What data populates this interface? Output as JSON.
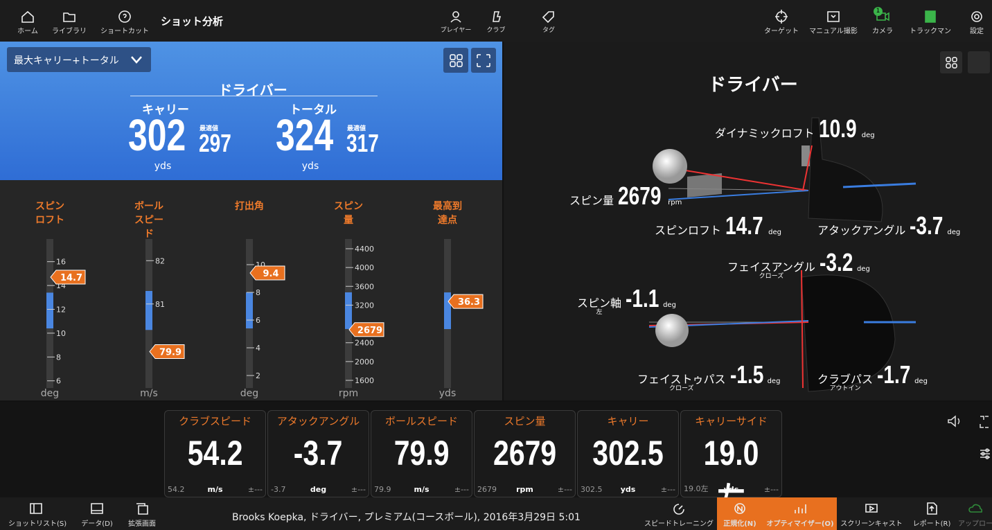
{
  "top_bar": {
    "left": [
      "ホーム",
      "ライブラリ",
      "ショートカット"
    ],
    "title": "ショット分析",
    "center": [
      "プレイヤー",
      "クラブ",
      "タグ"
    ],
    "right": [
      "ターゲット",
      "マニュアル撮影",
      "カメラ",
      "トラックマン",
      "設定"
    ],
    "camera_badge": "1"
  },
  "summary": {
    "dropdown": "最大キャリー+トータル",
    "club": "ドライバー",
    "optimal_label": "最適値",
    "unit": "yds",
    "metrics": [
      {
        "name": "キャリー",
        "value": 302,
        "optimal": 297
      },
      {
        "name": "トータル",
        "value": 324,
        "optimal": 317
      }
    ]
  },
  "gauges": [
    {
      "label": "スピンロフト",
      "unit": "deg",
      "value": 14.7,
      "ylim": [
        5.4,
        17.9
      ],
      "yticks": [
        6,
        8,
        10,
        12,
        14,
        16
      ],
      "optimal": [
        10.4,
        13.4
      ]
    },
    {
      "label": "ボールスピード",
      "unit": "m/s",
      "value": 79.9,
      "ylim": [
        79.06,
        82.5
      ],
      "yticks": [
        81,
        82
      ],
      "optimal": [
        80.4,
        81.3
      ]
    },
    {
      "label": "打出角",
      "unit": "deg",
      "value": 9.4,
      "ylim": [
        1.1,
        11.85
      ],
      "yticks": [
        2,
        4,
        6,
        8,
        10
      ],
      "optimal": [
        5.4,
        8
      ]
    },
    {
      "label": "スピン量",
      "unit": "rpm",
      "value": 2679,
      "ylim": [
        1438,
        4606
      ],
      "yticks": [
        1600,
        2000,
        2400,
        3200,
        3600,
        4000,
        4400
      ],
      "optimal": [
        2692,
        3472
      ]
    },
    {
      "label": "最高到達点",
      "unit": "yds",
      "value": 36.3,
      "ylim": [
        0,
        62.5
      ],
      "yticks": [],
      "optimal": [
        24.7,
        40.1
      ]
    }
  ],
  "diagram": {
    "title": "ドライバー",
    "metrics": [
      {
        "label": "ダイナミックロフト",
        "value": 10.9,
        "unit": "deg"
      },
      {
        "label": "スピン量",
        "value": 2679,
        "unit": "rpm"
      },
      {
        "label": "スピンロフト",
        "value": 14.7,
        "unit": "deg"
      },
      {
        "label": "アタックアングル",
        "value": -3.7,
        "unit": "deg"
      },
      {
        "label": "フェイスアングル",
        "sub": "クローズ",
        "value": -3.2,
        "unit": "deg"
      },
      {
        "label": "スピン軸",
        "sub": "左",
        "value": -1.1,
        "unit": "deg"
      },
      {
        "label": "フェイストゥパス",
        "sub": "クローズ",
        "value": -1.5,
        "unit": "deg"
      },
      {
        "label": "クラブパス",
        "sub": "アウトイン",
        "value": -1.7,
        "unit": "deg"
      }
    ]
  },
  "tiles": [
    {
      "label": "クラブスピード",
      "value": "54.2",
      "sub": "54.2",
      "unit": "m/s",
      "tolerance": "±---"
    },
    {
      "label": "アタックアングル",
      "value": "-3.7",
      "sub": "-3.7",
      "unit": "deg",
      "tolerance": "±---"
    },
    {
      "label": "ボールスピード",
      "value": "79.9",
      "sub": "79.9",
      "unit": "m/s",
      "tolerance": "±---"
    },
    {
      "label": "スピン量",
      "value": "2679",
      "sub": "2679",
      "unit": "rpm",
      "tolerance": "±---"
    },
    {
      "label": "キャリー",
      "value": "302.5",
      "sub": "302.5",
      "unit": "yds",
      "tolerance": "±---"
    },
    {
      "label": "キャリーサイド",
      "value": "19.0左",
      "sub": "19.0左",
      "unit": "yds",
      "tolerance": "±---"
    }
  ],
  "footer": {
    "left": [
      "ショットリスト(S)",
      "データ(D)",
      "拡張画面"
    ],
    "info": "Brooks Koepka, ドライバー, プレミアム(コースボール), 2016年3月29日 5:01",
    "right": [
      "スピードトレーニング",
      "正規化(N)",
      "オプティマイザー(O)",
      "スクリーンキャスト",
      "レポート(R)",
      "アップロー"
    ]
  }
}
